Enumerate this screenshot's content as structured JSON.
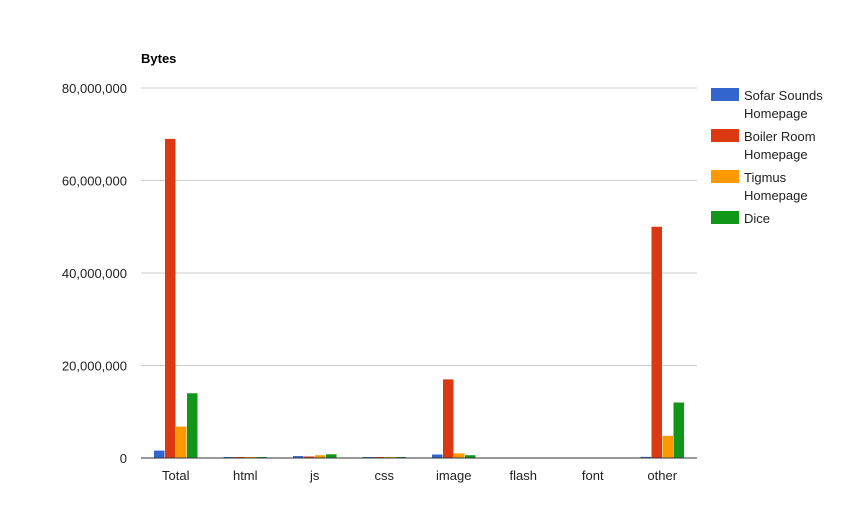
{
  "chart_data": {
    "type": "bar",
    "title": "Bytes",
    "xlabel": "",
    "ylabel": "",
    "ylim": [
      0,
      80000000
    ],
    "yticks": [
      "0",
      "20,000,000",
      "40,000,000",
      "60,000,000",
      "80,000,000"
    ],
    "grid": true,
    "legend_position": "right",
    "categories": [
      "Total",
      "html",
      "js",
      "css",
      "image",
      "flash",
      "font",
      "other"
    ],
    "series": [
      {
        "name": "Sofar Sounds Homepage",
        "legend_lines": [
          "Sofar Sounds",
          "Homepage"
        ],
        "color": "#3366cc",
        "values": [
          1600000,
          60000,
          420000,
          40000,
          750000,
          0,
          0,
          250000
        ]
      },
      {
        "name": "Boiler Room Homepage",
        "legend_lines": [
          "Boiler Room",
          "Homepage"
        ],
        "color": "#dc3912",
        "values": [
          69000000,
          40000,
          330000,
          40000,
          17000000,
          0,
          0,
          50000000
        ]
      },
      {
        "name": "Tigmus Homepage",
        "legend_lines": [
          "Tigmus",
          "Homepage"
        ],
        "color": "#ff9900",
        "values": [
          6800000,
          40000,
          600000,
          40000,
          1000000,
          0,
          0,
          4800000
        ]
      },
      {
        "name": "Dice",
        "legend_lines": [
          "Dice"
        ],
        "color": "#109618",
        "values": [
          14000000,
          40000,
          800000,
          40000,
          600000,
          0,
          0,
          12000000
        ]
      }
    ]
  }
}
